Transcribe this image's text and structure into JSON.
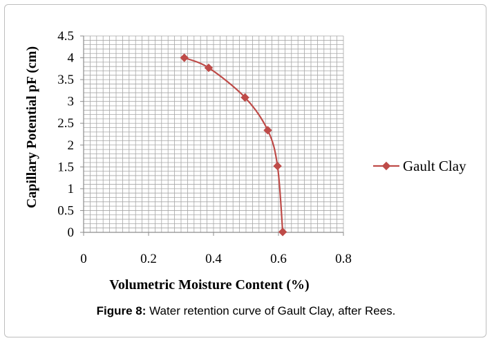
{
  "caption": {
    "label": "Figure 8:",
    "text": " Water retention curve of Gault Clay, after Rees."
  },
  "chart_data": {
    "type": "line",
    "xlabel": "Volumetric Moisture Content (%)",
    "ylabel": "Capillary Potential pF (cm)",
    "xlim": [
      0,
      0.8
    ],
    "ylim": [
      0,
      4.5
    ],
    "xticks": [
      "0",
      "0.2",
      "0.4",
      "0.6",
      "0.8"
    ],
    "yticks": [
      "0",
      "0.5",
      "1",
      "1.5",
      "2",
      "2.5",
      "3",
      "3.5",
      "4",
      "4.5"
    ],
    "grid": true,
    "legend_position": "right",
    "series": [
      {
        "name": "Gault Clay",
        "color": "#be4b48",
        "marker": "diamond",
        "x": [
          0.31,
          0.385,
          0.497,
          0.567,
          0.597,
          0.613
        ],
        "y": [
          4.0,
          3.77,
          3.09,
          2.34,
          1.52,
          0.01
        ]
      }
    ]
  }
}
